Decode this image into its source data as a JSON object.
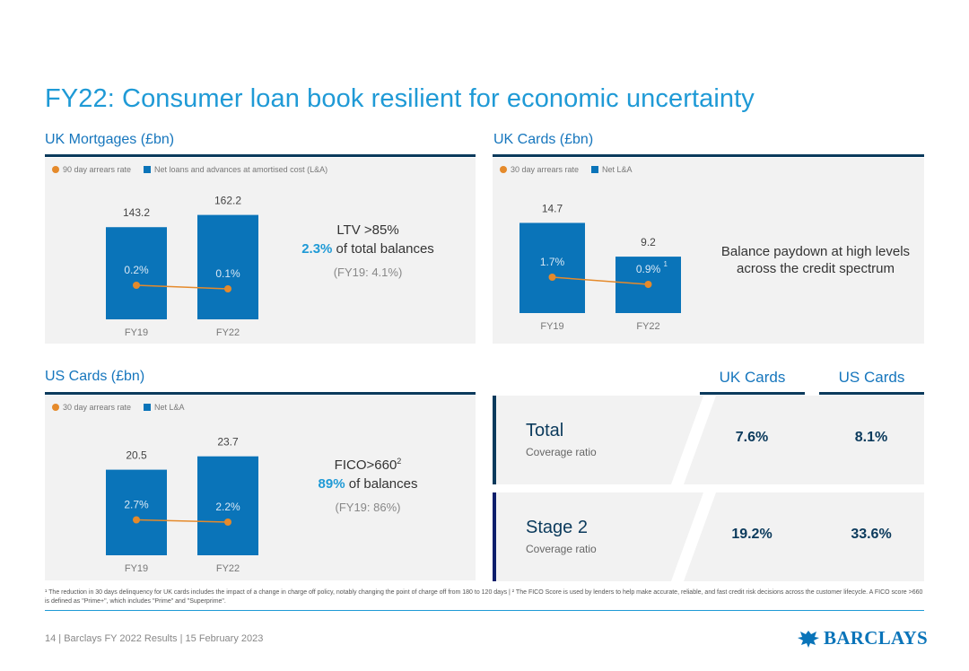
{
  "title": "FY22: Consumer loan book resilient for economic uncertainty",
  "colors": {
    "bar": "#0a74b9",
    "line": "#e58a2b",
    "title": "#1f9ad6",
    "navy": "#0b3a5c"
  },
  "uk_mortgages": {
    "heading": "UK Mortgages (£bn)",
    "legend": {
      "rate": "90 day arrears rate",
      "bars": "Net loans and advances at amortised cost (L&A)"
    },
    "side": {
      "line1": "LTV >85%",
      "line2_value": "2.3%",
      "line2_text": " of total balances",
      "line3": "(FY19: 4.1%)"
    }
  },
  "uk_cards": {
    "heading": "UK Cards (£bn)",
    "legend": {
      "rate": "30 day arrears rate",
      "bars": "Net L&A"
    },
    "side": {
      "line1": "Balance paydown at high levels",
      "line2": "across the credit spectrum"
    }
  },
  "us_cards": {
    "heading": "US Cards (£bn)",
    "legend": {
      "rate": "30 day arrears rate",
      "bars": "Net L&A"
    },
    "side": {
      "line1": "FICO>660",
      "line1_sup": "2",
      "line2_value": "89%",
      "line2_text": " of balances",
      "line3": "(FY19: 86%)"
    }
  },
  "chart_data": [
    {
      "type": "bar",
      "title": "UK Mortgages (£bn)",
      "categories": [
        "FY19",
        "FY22"
      ],
      "values": [
        143.2,
        162.2
      ],
      "value_labels": [
        "143.2",
        "162.2"
      ],
      "series": [
        {
          "name": "Net loans and advances at amortised cost (L&A)",
          "values": [
            143.2,
            162.2
          ]
        },
        {
          "name": "90 day arrears rate",
          "type": "line",
          "values": [
            0.2,
            0.1
          ],
          "labels": [
            "0.2%",
            "0.1%"
          ]
        }
      ]
    },
    {
      "type": "bar",
      "title": "UK Cards (£bn)",
      "categories": [
        "FY19",
        "FY22"
      ],
      "values": [
        14.7,
        9.2
      ],
      "value_labels": [
        "14.7",
        "9.2"
      ],
      "series": [
        {
          "name": "Net L&A",
          "values": [
            14.7,
            9.2
          ]
        },
        {
          "name": "30 day arrears rate",
          "type": "line",
          "values": [
            1.7,
            0.9
          ],
          "labels": [
            "1.7%",
            "0.9%"
          ],
          "footnote_marks": [
            "",
            "1"
          ]
        }
      ]
    },
    {
      "type": "bar",
      "title": "US Cards (£bn)",
      "categories": [
        "FY19",
        "FY22"
      ],
      "values": [
        20.5,
        23.7
      ],
      "value_labels": [
        "20.5",
        "23.7"
      ],
      "series": [
        {
          "name": "Net L&A",
          "values": [
            20.5,
            23.7
          ]
        },
        {
          "name": "30 day arrears rate",
          "type": "line",
          "values": [
            2.7,
            2.2
          ],
          "labels": [
            "2.7%",
            "2.2%"
          ]
        }
      ]
    },
    {
      "type": "table",
      "columns": [
        "UK Cards",
        "US Cards"
      ],
      "rows": [
        {
          "name": "Total",
          "sub": "Coverage ratio",
          "values": [
            "7.6%",
            "8.1%"
          ]
        },
        {
          "name": "Stage 2",
          "sub": "Coverage ratio",
          "values": [
            "19.2%",
            "33.6%"
          ]
        }
      ]
    }
  ],
  "coverage": {
    "col_uk": "UK Cards",
    "col_us": "US Cards",
    "rows": [
      {
        "name": "Total",
        "sub": "Coverage ratio",
        "uk": "7.6%",
        "us": "8.1%"
      },
      {
        "name": "Stage 2",
        "sub": "Coverage ratio",
        "uk": "19.2%",
        "us": "33.6%"
      }
    ]
  },
  "footnote": "¹ The reduction in 30 days delinquency for UK cards includes the impact of a change in charge off policy, notably changing the point of charge off from 180 to 120 days | ² The FICO Score is used by lenders to help make accurate, reliable, and fast credit risk decisions across the customer lifecycle. A FICO score >660 is defined as \"Prime+\", which includes \"Prime\" and \"Superprime\".",
  "footer": "14 | Barclays FY 2022 Results | 15 February 2023",
  "logo_text": "BARCLAYS"
}
